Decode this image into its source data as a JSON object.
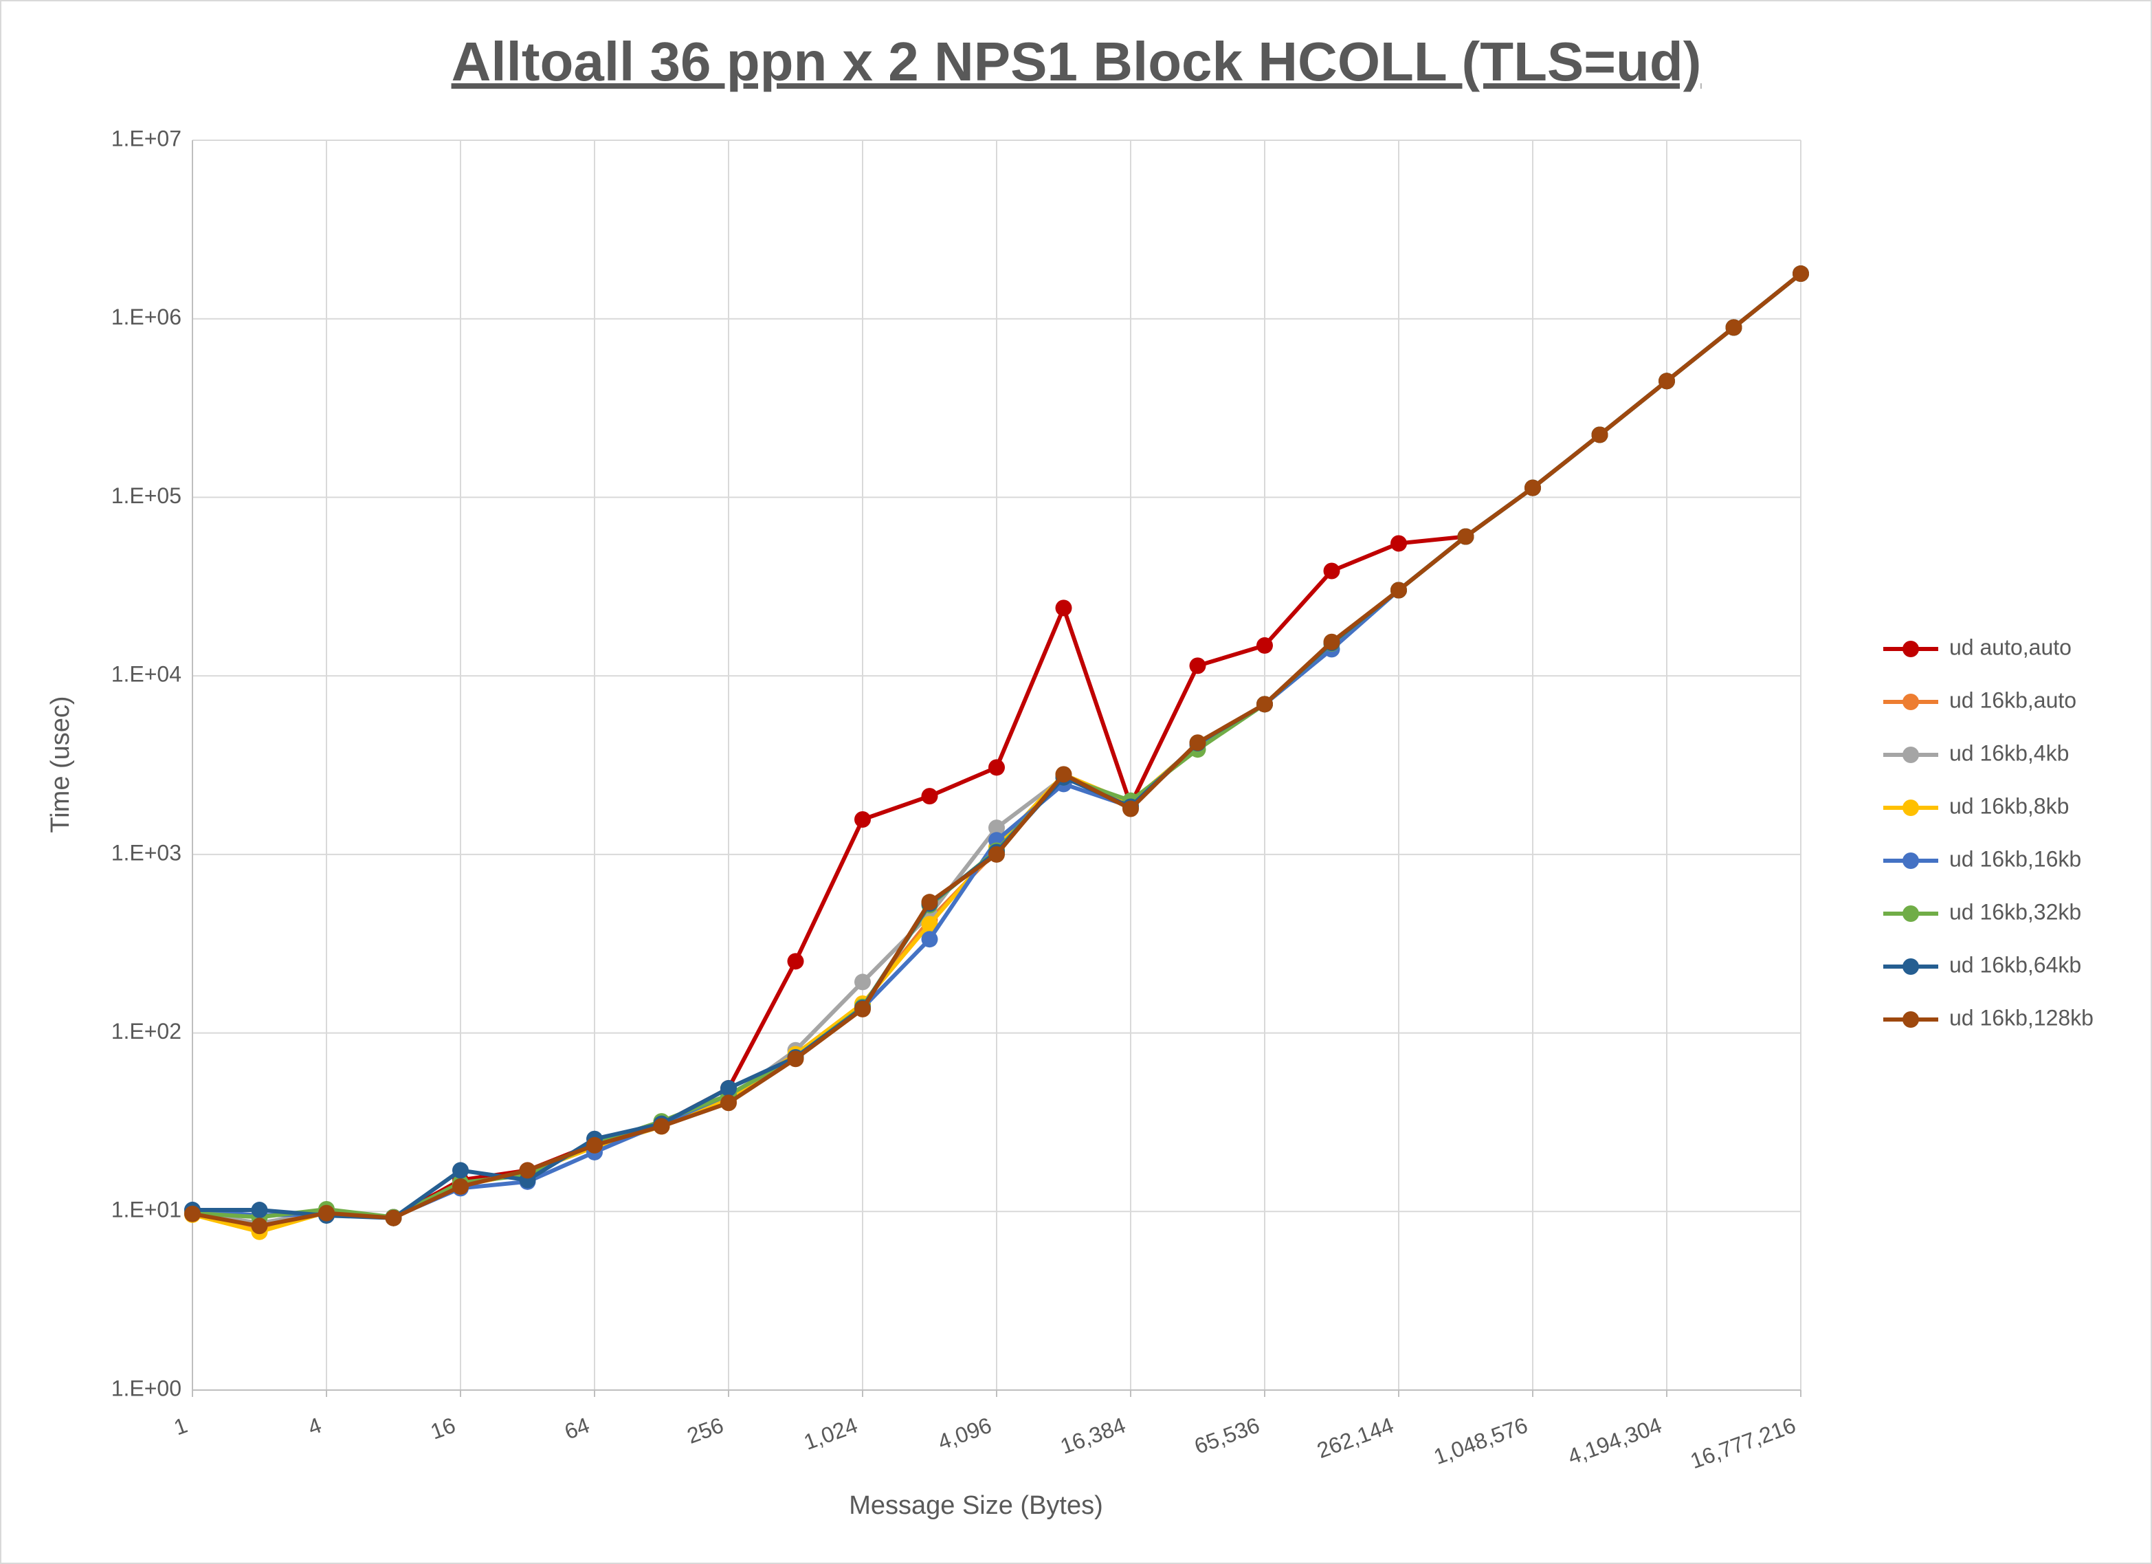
{
  "chart_data": {
    "type": "line",
    "title": "Alltoall 36 ppn x 2 NPS1 Block HCOLL (TLS=ud)",
    "x_label": "Message Size (Bytes)",
    "y_label": "Time (usec)",
    "xscale": "log",
    "yscale": "log",
    "grid": true,
    "legend": "right",
    "x": [
      1,
      2,
      4,
      8,
      16,
      32,
      64,
      128,
      256,
      512,
      1024,
      2048,
      4096,
      8192,
      16384,
      32768,
      65536,
      131072,
      262144,
      524288,
      1048576,
      2097152,
      4194304,
      8388608,
      16777216
    ],
    "xlim": [
      1,
      16777216
    ],
    "xticks": [
      1,
      4,
      16,
      64,
      256,
      {
        "value": 1024,
        "label": "1,024"
      },
      {
        "value": 4096,
        "label": "4,096"
      },
      {
        "value": 16384,
        "label": "16,384"
      },
      {
        "value": 65536,
        "label": "65,536"
      },
      {
        "value": 262144,
        "label": "262,144"
      },
      {
        "value": 1048576,
        "label": "1,048,576"
      },
      {
        "value": 4194304,
        "label": "4,194,304"
      },
      {
        "value": 16777216,
        "label": "16,777,216"
      }
    ],
    "ylim": [
      1,
      10000000
    ],
    "yticks": [
      {
        "value": 1,
        "label": "1.E+00"
      },
      {
        "value": 10,
        "label": "1.E+01"
      },
      {
        "value": 100,
        "label": "1.E+02"
      },
      {
        "value": 1000,
        "label": "1.E+03"
      },
      {
        "value": 10000,
        "label": "1.E+04"
      },
      {
        "value": 100000,
        "label": "1.E+05"
      },
      {
        "value": 1000000,
        "label": "1.E+06"
      },
      {
        "value": 10000000,
        "label": "1.E+07"
      }
    ],
    "series": [
      {
        "name": "ud auto,auto",
        "color": "#c00000",
        "values": [
          9.8,
          8.5,
          9.8,
          9.3,
          15,
          17,
          24,
          31,
          49,
          252,
          1570,
          2120,
          3070,
          24000,
          1900,
          11400,
          14800,
          38700,
          55200,
          60300,
          113000,
          224000,
          448000,
          894000,
          1790000
        ]
      },
      {
        "name": "ud 16kb,auto",
        "color": "#ed7d31",
        "values": [
          9.7,
          8.1,
          10,
          9.2,
          14,
          16.5,
          23,
          30,
          42,
          75,
          145,
          430,
          1050,
          2800,
          1950,
          4100,
          6940,
          15200,
          30200,
          60300,
          113000,
          224000,
          448000,
          894000,
          1790000
        ]
      },
      {
        "name": "ud 16kb,4kb",
        "color": "#a5a5a5",
        "values": [
          9.9,
          8.6,
          10,
          9.2,
          14.2,
          16.5,
          23,
          30,
          43,
          80,
          193,
          460,
          1410,
          2700,
          1900,
          4100,
          6940,
          15000,
          30200,
          60300,
          113000,
          224000,
          448000,
          894000,
          1790000
        ]
      },
      {
        "name": "ud 16kb,8kb",
        "color": "#ffc000",
        "values": [
          9.6,
          7.7,
          9.9,
          9.2,
          14,
          16.5,
          23,
          30,
          43,
          76,
          146,
          407,
          1100,
          2800,
          1950,
          4100,
          6940,
          15200,
          30200,
          60300,
          113000,
          224000,
          448000,
          894000,
          1790000
        ]
      },
      {
        "name": "ud 16kb,16kb",
        "color": "#4472c4",
        "values": [
          10.2,
          9.5,
          9.7,
          9.3,
          13.5,
          14.7,
          21.5,
          31,
          45,
          73,
          138,
          335,
          1200,
          2480,
          1850,
          4100,
          6940,
          14100,
          30200,
          60300,
          113000,
          224000,
          448000,
          894000,
          1790000
        ]
      },
      {
        "name": "ud 16kb,32kb",
        "color": "#70ad47",
        "values": [
          9.8,
          9.3,
          10.3,
          9.3,
          14.5,
          16,
          24,
          32,
          45,
          73,
          140,
          520,
          1050,
          2700,
          2000,
          3870,
          6940,
          15200,
          30200,
          60300,
          113000,
          224000,
          448000,
          894000,
          1790000
        ]
      },
      {
        "name": "ud 16kb,64kb",
        "color": "#255e91",
        "values": [
          10.2,
          10.2,
          9.5,
          9.2,
          17,
          15,
          25.5,
          31,
          49,
          73,
          138,
          530,
          1030,
          2700,
          1850,
          4200,
          6940,
          15300,
          30200,
          60300,
          113000,
          224000,
          448000,
          894000,
          1790000
        ]
      },
      {
        "name": "ud 16kb,128kb",
        "color": "#9e480e",
        "values": [
          9.7,
          8.3,
          9.8,
          9.2,
          13.8,
          17,
          23.5,
          30,
          40.6,
          71.6,
          136,
          541,
          1000,
          2810,
          1800,
          4230,
          6940,
          15500,
          30200,
          60300,
          113000,
          224000,
          448000,
          894000,
          1790000
        ]
      }
    ]
  }
}
